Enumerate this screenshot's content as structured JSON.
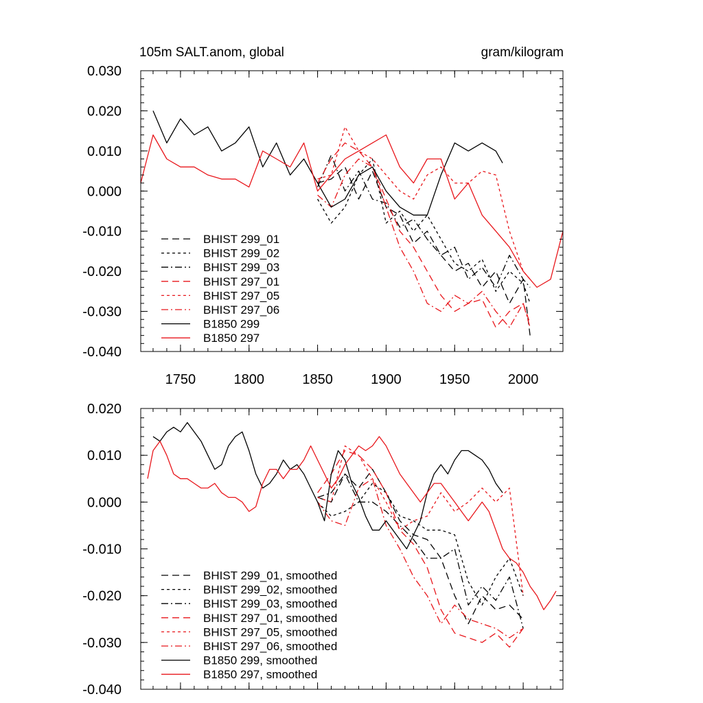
{
  "chart_data": [
    {
      "type": "line",
      "title": "105m SALT.anom, global",
      "units": "gram/kilogram",
      "xlim": [
        1721,
        2029
      ],
      "ylim": [
        -0.04,
        0.03
      ],
      "xticks": [
        1750,
        1800,
        1850,
        1900,
        1950,
        2000
      ],
      "xtick_labels": [
        "1750",
        "1800",
        "1850",
        "1900",
        "1950",
        "2000"
      ],
      "yticks": [
        0.03,
        0.02,
        0.01,
        0.0,
        -0.01,
        -0.02,
        -0.03,
        -0.04
      ],
      "ytick_labels": [
        "0.030",
        "0.020",
        "0.010",
        "0.000",
        "-0.010",
        "-0.020",
        "-0.030",
        "-0.040"
      ],
      "legend_position": "bottom-left",
      "series": [
        {
          "name": "BHIST 299_01",
          "color": "#000000",
          "dash": "long-dash",
          "x": [
            1850,
            1860,
            1870,
            1880,
            1890,
            1900,
            1910,
            1920,
            1930,
            1940,
            1950,
            1960,
            1970,
            1980,
            1990,
            2000,
            2005
          ],
          "y": [
            0.002,
            0.003,
            0.006,
            -0.002,
            0.005,
            -0.004,
            -0.006,
            -0.013,
            -0.01,
            -0.016,
            -0.02,
            -0.018,
            -0.024,
            -0.02,
            -0.028,
            -0.022,
            -0.036
          ]
        },
        {
          "name": "BHIST 299_02",
          "color": "#000000",
          "dash": "short-dash",
          "x": [
            1850,
            1860,
            1870,
            1880,
            1890,
            1900,
            1910,
            1920,
            1930,
            1940,
            1950,
            1960,
            1970,
            1980,
            1990,
            2000,
            2005
          ],
          "y": [
            -0.002,
            -0.008,
            -0.004,
            0.004,
            0.008,
            -0.008,
            -0.005,
            -0.01,
            -0.006,
            -0.012,
            -0.018,
            -0.02,
            -0.017,
            -0.025,
            -0.02,
            -0.023,
            -0.028
          ]
        },
        {
          "name": "BHIST 299_03",
          "color": "#000000",
          "dash": "dash-dot",
          "x": [
            1850,
            1860,
            1870,
            1880,
            1890,
            1900,
            1910,
            1920,
            1930,
            1940,
            1950,
            1960,
            1970,
            1980,
            1990,
            2000,
            2005
          ],
          "y": [
            0.001,
            0.009,
            0.0,
            0.005,
            -0.002,
            -0.003,
            -0.009,
            -0.007,
            -0.012,
            -0.016,
            -0.014,
            -0.022,
            -0.019,
            -0.024,
            -0.016,
            -0.022,
            -0.024
          ]
        },
        {
          "name": "BHIST 297_01",
          "color": "#e8161b",
          "dash": "long-dash",
          "x": [
            1850,
            1860,
            1870,
            1880,
            1890,
            1900,
            1910,
            1920,
            1930,
            1940,
            1950,
            1960,
            1970,
            1980,
            1990,
            2000,
            2005
          ],
          "y": [
            0.002,
            0.008,
            0.012,
            0.01,
            0.006,
            -0.002,
            -0.01,
            -0.014,
            -0.02,
            -0.026,
            -0.03,
            -0.028,
            -0.027,
            -0.034,
            -0.03,
            -0.028,
            -0.033
          ]
        },
        {
          "name": "BHIST 297_05",
          "color": "#e8161b",
          "dash": "short-dash",
          "x": [
            1850,
            1860,
            1870,
            1880,
            1890,
            1900,
            1910,
            1920,
            1930,
            1940,
            1950,
            1960,
            1970,
            1980,
            1990,
            2000,
            2005
          ],
          "y": [
            0.003,
            0.004,
            0.016,
            0.01,
            0.008,
            0.004,
            0.0,
            -0.002,
            0.004,
            0.006,
            0.002,
            0.002,
            0.005,
            0.004,
            -0.01,
            -0.02,
            -0.022
          ]
        },
        {
          "name": "BHIST 297_06",
          "color": "#e8161b",
          "dash": "dash-dot",
          "x": [
            1850,
            1860,
            1870,
            1880,
            1890,
            1900,
            1910,
            1920,
            1930,
            1940,
            1950,
            1960,
            1970,
            1980,
            1990,
            2000,
            2005
          ],
          "y": [
            -0.001,
            -0.004,
            0.004,
            0.008,
            0.006,
            -0.004,
            -0.014,
            -0.02,
            -0.028,
            -0.03,
            -0.026,
            -0.028,
            -0.025,
            -0.03,
            -0.034,
            -0.028,
            -0.034
          ]
        },
        {
          "name": "B1850 299",
          "color": "#000000",
          "dash": "solid",
          "x": [
            1730,
            1740,
            1750,
            1760,
            1770,
            1780,
            1790,
            1800,
            1810,
            1820,
            1830,
            1840,
            1850,
            1860,
            1870,
            1880,
            1890,
            1900,
            1910,
            1920,
            1930,
            1940,
            1950,
            1960,
            1970,
            1980,
            1985
          ],
          "y": [
            0.02,
            0.012,
            0.018,
            0.014,
            0.016,
            0.01,
            0.012,
            0.016,
            0.006,
            0.012,
            0.004,
            0.008,
            0.002,
            -0.004,
            -0.002,
            0.004,
            0.006,
            0.0,
            -0.004,
            -0.006,
            -0.006,
            0.004,
            0.012,
            0.01,
            0.012,
            0.01,
            0.007
          ]
        },
        {
          "name": "B1850 297",
          "color": "#e8161b",
          "dash": "solid",
          "x": [
            1721,
            1730,
            1740,
            1750,
            1760,
            1770,
            1780,
            1790,
            1800,
            1810,
            1820,
            1830,
            1840,
            1850,
            1860,
            1870,
            1880,
            1890,
            1900,
            1910,
            1920,
            1930,
            1940,
            1950,
            1960,
            1970,
            1980,
            1990,
            2000,
            2010,
            2020,
            2029
          ],
          "y": [
            0.002,
            0.014,
            0.008,
            0.006,
            0.006,
            0.004,
            0.003,
            0.003,
            0.001,
            0.01,
            0.008,
            0.006,
            0.012,
            0.0,
            0.004,
            0.008,
            0.01,
            0.012,
            0.014,
            0.006,
            0.002,
            0.008,
            0.008,
            -0.002,
            0.002,
            -0.006,
            -0.01,
            -0.014,
            -0.02,
            -0.024,
            -0.022,
            -0.01
          ]
        }
      ]
    },
    {
      "type": "line",
      "title": "",
      "xlim": [
        1721,
        2029
      ],
      "ylim": [
        -0.04,
        0.02
      ],
      "xticks": [
        1750,
        1800,
        1850,
        1900,
        1950,
        2000
      ],
      "yticks": [
        0.02,
        0.01,
        0.0,
        -0.01,
        -0.02,
        -0.03,
        -0.04
      ],
      "ytick_labels": [
        "0.020",
        "0.010",
        "0.000",
        "-0.010",
        "-0.020",
        "-0.030",
        "-0.040"
      ],
      "legend_position": "bottom-left",
      "series": [
        {
          "name": "BHIST 299_01, smoothed",
          "color": "#000000",
          "dash": "long-dash",
          "x": [
            1850,
            1860,
            1870,
            1880,
            1890,
            1900,
            1910,
            1920,
            1930,
            1940,
            1950,
            1960,
            1970,
            1980,
            1990,
            2000
          ],
          "y": [
            0.001,
            0.0,
            0.006,
            0.003,
            0.007,
            0.002,
            -0.004,
            -0.007,
            -0.008,
            -0.012,
            -0.02,
            -0.026,
            -0.02,
            -0.023,
            -0.022,
            -0.025
          ]
        },
        {
          "name": "BHIST 299_02, smoothed",
          "color": "#000000",
          "dash": "short-dash",
          "x": [
            1850,
            1860,
            1870,
            1880,
            1890,
            1900,
            1910,
            1920,
            1930,
            1940,
            1950,
            1960,
            1970,
            1980,
            1990,
            2000
          ],
          "y": [
            0.0,
            -0.003,
            -0.002,
            0.0,
            0.004,
            0.002,
            -0.003,
            -0.004,
            -0.006,
            -0.006,
            -0.007,
            -0.017,
            -0.022,
            -0.016,
            -0.012,
            -0.02
          ]
        },
        {
          "name": "BHIST 299_03, smoothed",
          "color": "#000000",
          "dash": "dash-dot",
          "x": [
            1850,
            1860,
            1870,
            1880,
            1890,
            1900,
            1910,
            1920,
            1930,
            1940,
            1950,
            1960,
            1970,
            1980,
            1990,
            2000
          ],
          "y": [
            0.001,
            0.002,
            0.006,
            0.0,
            0.0,
            -0.002,
            -0.005,
            -0.008,
            -0.012,
            -0.012,
            -0.01,
            -0.022,
            -0.018,
            -0.021,
            -0.016,
            -0.027
          ]
        },
        {
          "name": "BHIST 297_01, smoothed",
          "color": "#e8161b",
          "dash": "long-dash",
          "x": [
            1850,
            1860,
            1870,
            1880,
            1890,
            1900,
            1910,
            1920,
            1930,
            1940,
            1950,
            1960,
            1970,
            1980,
            1990,
            2000
          ],
          "y": [
            0.002,
            0.006,
            0.011,
            0.01,
            0.007,
            0.002,
            -0.006,
            -0.009,
            -0.014,
            -0.023,
            -0.028,
            -0.029,
            -0.03,
            -0.028,
            -0.031,
            -0.027
          ]
        },
        {
          "name": "BHIST 297_05, smoothed",
          "color": "#e8161b",
          "dash": "short-dash",
          "x": [
            1850,
            1860,
            1870,
            1880,
            1890,
            1900,
            1910,
            1920,
            1930,
            1940,
            1950,
            1960,
            1970,
            1980,
            1990,
            2000
          ],
          "y": [
            0.001,
            0.0,
            0.012,
            0.01,
            0.005,
            0.0,
            -0.006,
            -0.004,
            -0.003,
            0.002,
            -0.002,
            0.0,
            0.003,
            0.0,
            0.003,
            -0.02
          ]
        },
        {
          "name": "BHIST 297_06, smoothed",
          "color": "#e8161b",
          "dash": "dash-dot",
          "x": [
            1850,
            1860,
            1870,
            1880,
            1890,
            1900,
            1910,
            1920,
            1930,
            1940,
            1950,
            1960,
            1970,
            1980,
            1990,
            2000
          ],
          "y": [
            0.0,
            -0.004,
            -0.005,
            0.003,
            0.005,
            -0.005,
            -0.01,
            -0.016,
            -0.02,
            -0.026,
            -0.022,
            -0.025,
            -0.026,
            -0.027,
            -0.029,
            -0.027
          ]
        },
        {
          "name": "B1850 299, smoothed",
          "color": "#000000",
          "dash": "solid",
          "x": [
            1730,
            1735,
            1740,
            1745,
            1750,
            1755,
            1760,
            1765,
            1770,
            1775,
            1780,
            1785,
            1790,
            1795,
            1800,
            1805,
            1810,
            1815,
            1820,
            1825,
            1830,
            1835,
            1840,
            1845,
            1850,
            1855,
            1860,
            1865,
            1870,
            1875,
            1880,
            1885,
            1890,
            1895,
            1900,
            1905,
            1910,
            1915,
            1920,
            1925,
            1930,
            1935,
            1940,
            1945,
            1950,
            1955,
            1960,
            1965,
            1970,
            1975,
            1980,
            1985
          ],
          "y": [
            0.014,
            0.013,
            0.015,
            0.016,
            0.015,
            0.017,
            0.015,
            0.013,
            0.01,
            0.007,
            0.008,
            0.012,
            0.014,
            0.015,
            0.011,
            0.006,
            0.003,
            0.004,
            0.006,
            0.009,
            0.007,
            0.008,
            0.006,
            0.003,
            0.0,
            -0.004,
            0.006,
            0.011,
            0.009,
            0.004,
            0.001,
            -0.003,
            -0.006,
            -0.006,
            -0.004,
            -0.006,
            -0.008,
            -0.01,
            -0.007,
            -0.004,
            0.002,
            0.006,
            0.008,
            0.006,
            0.009,
            0.011,
            0.011,
            0.01,
            0.009,
            0.007,
            0.004,
            0.002
          ]
        },
        {
          "name": "B1850 297, smoothed",
          "color": "#e8161b",
          "dash": "solid",
          "x": [
            1726,
            1730,
            1735,
            1740,
            1745,
            1750,
            1755,
            1760,
            1765,
            1770,
            1775,
            1780,
            1785,
            1790,
            1795,
            1800,
            1805,
            1810,
            1815,
            1820,
            1825,
            1830,
            1835,
            1840,
            1845,
            1850,
            1855,
            1860,
            1865,
            1870,
            1875,
            1880,
            1885,
            1890,
            1895,
            1900,
            1905,
            1910,
            1915,
            1920,
            1925,
            1930,
            1935,
            1940,
            1945,
            1950,
            1955,
            1960,
            1965,
            1970,
            1975,
            1980,
            1985,
            1990,
            1995,
            2000,
            2005,
            2010,
            2015,
            2020,
            2024
          ],
          "y": [
            0.005,
            0.011,
            0.013,
            0.01,
            0.006,
            0.005,
            0.005,
            0.004,
            0.003,
            0.003,
            0.004,
            0.002,
            0.001,
            0.001,
            0.0,
            -0.002,
            -0.001,
            0.004,
            0.007,
            0.007,
            0.005,
            0.007,
            0.007,
            0.009,
            0.012,
            0.009,
            0.006,
            0.003,
            0.005,
            0.008,
            0.01,
            0.012,
            0.011,
            0.012,
            0.014,
            0.012,
            0.009,
            0.006,
            0.004,
            0.002,
            0.0,
            0.002,
            0.004,
            0.004,
            0.002,
            0.0,
            -0.002,
            -0.004,
            -0.002,
            0.0,
            -0.002,
            -0.006,
            -0.01,
            -0.012,
            -0.013,
            -0.015,
            -0.018,
            -0.02,
            -0.023,
            -0.021,
            -0.019
          ]
        }
      ]
    }
  ]
}
